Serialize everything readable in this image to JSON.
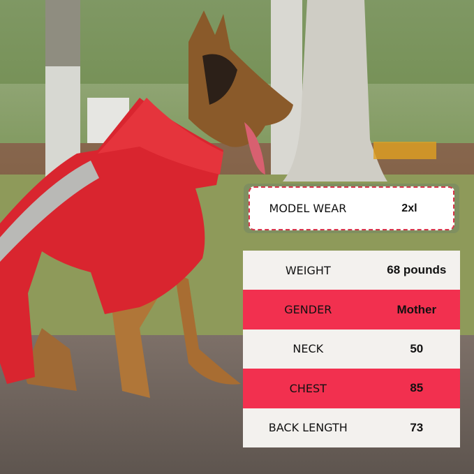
{
  "model_wear": {
    "label": "MODEL WEAR",
    "value": "2xl"
  },
  "specs": [
    {
      "label": "WEIGHT",
      "value": "68 pounds",
      "highlight": false
    },
    {
      "label": "GENDER",
      "value": "Mother",
      "highlight": true
    },
    {
      "label": "NECK",
      "value": "50",
      "highlight": false
    },
    {
      "label": "CHEST",
      "value": "85",
      "highlight": true
    },
    {
      "label": "BACK LENGTH",
      "value": "73",
      "highlight": false
    }
  ],
  "colors": {
    "accent_red": "#f2304f",
    "row_light": "#f3f1ee",
    "dashed_border": "#d8354c",
    "card_frame": "#7f8f60",
    "coat": "#d9252f"
  }
}
